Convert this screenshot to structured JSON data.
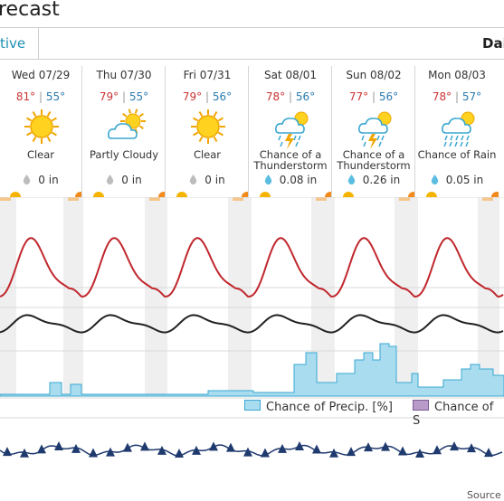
{
  "header": {
    "title": "recast"
  },
  "tabs": {
    "active": "tive",
    "right": "Dai"
  },
  "days": [
    {
      "date": "Wed 07/29",
      "hi": "81°",
      "lo": "55°",
      "icon": "sun-icon",
      "cond1": "Clear",
      "cond2": "",
      "precip": "0 in",
      "drop": "dry-drop-icon"
    },
    {
      "date": "Thu 07/30",
      "hi": "79°",
      "lo": "55°",
      "icon": "partly-cloudy-icon",
      "cond1": "Partly Cloudy",
      "cond2": "",
      "precip": "0 in",
      "drop": "dry-drop-icon"
    },
    {
      "date": "Fri 07/31",
      "hi": "79°",
      "lo": "56°",
      "icon": "sun-icon",
      "cond1": "Clear",
      "cond2": "",
      "precip": "0 in",
      "drop": "dry-drop-icon"
    },
    {
      "date": "Sat 08/01",
      "hi": "78°",
      "lo": "56°",
      "icon": "thunderstorm-icon",
      "cond1": "Chance of a",
      "cond2": "Thunderstorm",
      "precip": "0.08 in",
      "drop": "rain-drop-icon"
    },
    {
      "date": "Sun 08/02",
      "hi": "77°",
      "lo": "56°",
      "icon": "thunderstorm-icon",
      "cond1": "Chance of a",
      "cond2": "Thunderstorm",
      "precip": "0.26 in",
      "drop": "rain-drop-icon"
    },
    {
      "date": "Mon 08/03",
      "hi": "78°",
      "lo": "57°",
      "icon": "rain-icon",
      "cond1": "Chance of Rain",
      "cond2": "",
      "precip": "0.05 in",
      "drop": "rain-drop-icon"
    }
  ],
  "legend": {
    "precip_label": "Chance of Precip. [%]",
    "other_label": "Chance of S"
  },
  "colors": {
    "temp_line": "#c0272d",
    "dew_line": "#222222",
    "precip_fill": "#a9dcef",
    "precip_stroke": "#3aa7d1",
    "accent": "#1b8fb4",
    "night": "#efefef",
    "wind": "#1f3a6e"
  },
  "footer": {
    "source": "Source"
  }
}
